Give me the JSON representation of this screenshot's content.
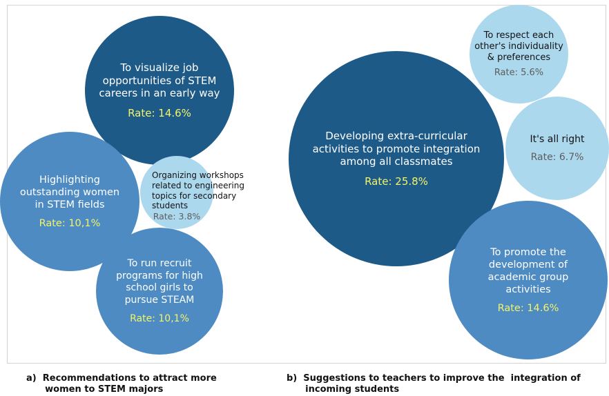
{
  "chart_data": [
    {
      "type": "bubble",
      "caption": "a)  Recommendations to attract more\n      women to STEM majors",
      "rate_label": "Rate: ",
      "bubbles": [
        {
          "label": "To visualize job\nopportunities of STEM\ncareers in an early way",
          "rate": "14.6%",
          "value": 14.6,
          "color": "#1d5a87"
        },
        {
          "label": "Highlighting\noutstanding women\nin STEM fields",
          "rate": "10,1%",
          "value": 10.1,
          "color": "#4d8bc2"
        },
        {
          "label": "Organizing workshops\nrelated to engineering\ntopics for secondary\nstudents",
          "rate": "3.8%",
          "value": 3.8,
          "color": "#acd8ee"
        },
        {
          "label": "To run recruit\nprograms for high\nschool girls to\npursue STEAM",
          "rate": "10,1%",
          "value": 10.1,
          "color": "#4d8bc2"
        }
      ]
    },
    {
      "type": "bubble",
      "caption": "b)  Suggestions to teachers to improve the  integration of\n      incoming students",
      "rate_label": "Rate: ",
      "bubbles": [
        {
          "label": "To respect each\nother's individuality\n& preferences",
          "rate": "5.6%",
          "value": 5.6,
          "color": "#acd8ee"
        },
        {
          "label": "Developing extra-curricular\nactivities to promote integration\namong all classmates",
          "rate": "25.8%",
          "value": 25.8,
          "color": "#1d5a87"
        },
        {
          "label": "It's all right",
          "rate": "6.7%",
          "value": 6.7,
          "color": "#acd8ee"
        },
        {
          "label": "To promote the\ndevelopment of\nacademic group\nactivities",
          "rate": "14.6%",
          "value": 14.6,
          "color": "#4d8bc2"
        }
      ]
    }
  ]
}
